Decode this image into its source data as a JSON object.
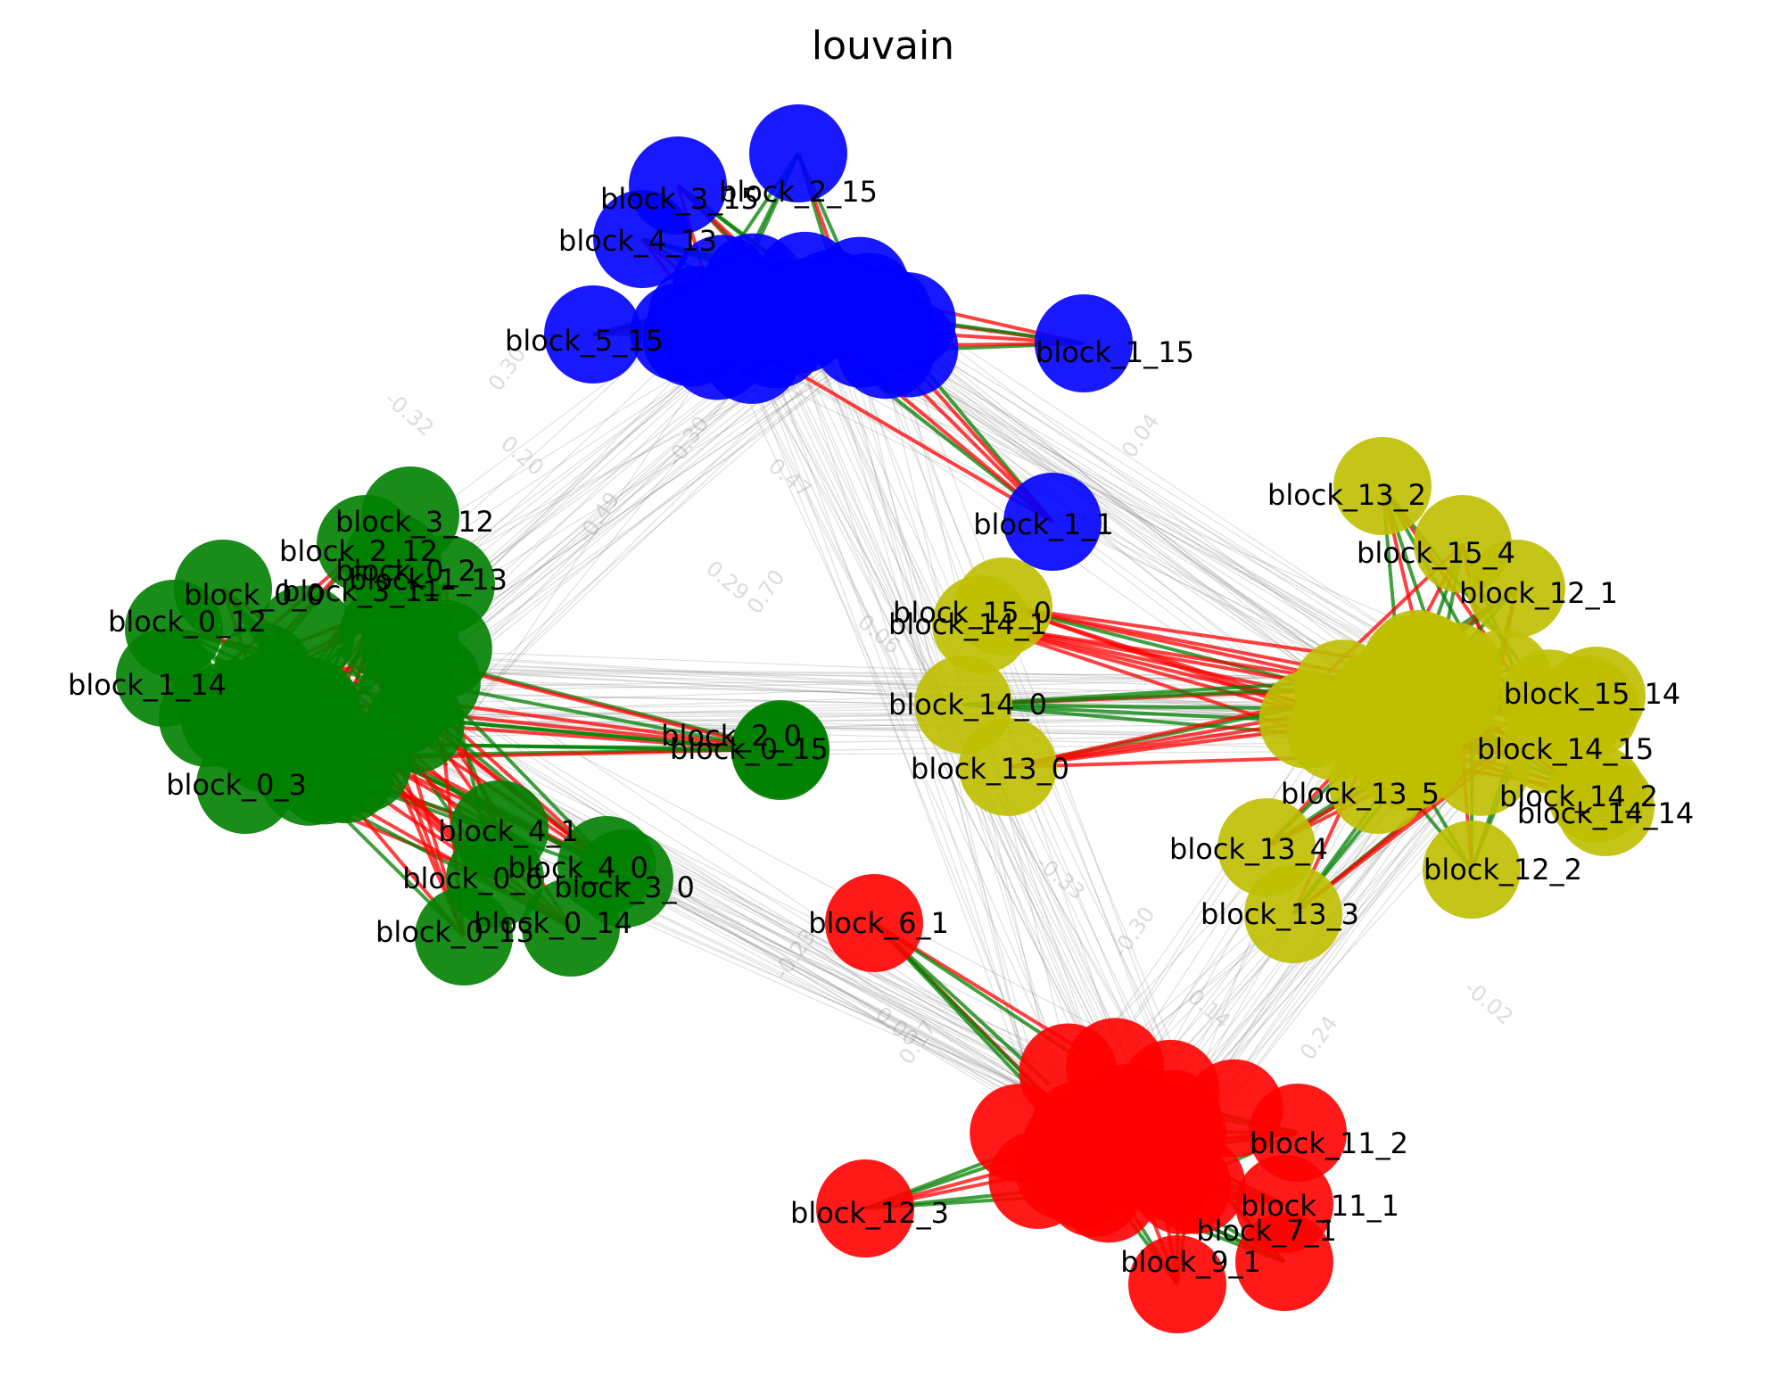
{
  "title": "louvain",
  "communities": [
    {
      "id": "blue",
      "color": "#0000ff"
    },
    {
      "id": "green",
      "color": "#008000"
    },
    {
      "id": "yellow",
      "color": "#bfbf00"
    },
    {
      "id": "red",
      "color": "#ff0000"
    }
  ],
  "edge_colors": {
    "positive": "#008000",
    "negative": "#ff0000",
    "inter": "#808080"
  },
  "nodes": [
    {
      "label": "block_2_15",
      "community": "blue"
    },
    {
      "label": "block_3_15",
      "community": "blue"
    },
    {
      "label": "block_4_13",
      "community": "blue"
    },
    {
      "label": "block_5_15",
      "community": "blue"
    },
    {
      "label": "block_1_15",
      "community": "blue"
    },
    {
      "label": "block_1_1",
      "community": "blue"
    },
    {
      "label": "block_3_12",
      "community": "green"
    },
    {
      "label": "block_2_12",
      "community": "green"
    },
    {
      "label": "block_0_2",
      "community": "green"
    },
    {
      "label": "block_0_0",
      "community": "green"
    },
    {
      "label": "block_3_11",
      "community": "green"
    },
    {
      "label": "block_1_13",
      "community": "green"
    },
    {
      "label": "block_0_12",
      "community": "green"
    },
    {
      "label": "block_1_14",
      "community": "green"
    },
    {
      "label": "block_0_3",
      "community": "green"
    },
    {
      "label": "block_2_0",
      "community": "green"
    },
    {
      "label": "block_0_15",
      "community": "green"
    },
    {
      "label": "block_4_1",
      "community": "green"
    },
    {
      "label": "block_0_6",
      "community": "green"
    },
    {
      "label": "block_4_0",
      "community": "green"
    },
    {
      "label": "block_3_0",
      "community": "green"
    },
    {
      "label": "block_0_14",
      "community": "green"
    },
    {
      "label": "block_0_13",
      "community": "green"
    },
    {
      "label": "block_13_2",
      "community": "yellow"
    },
    {
      "label": "block_15_4",
      "community": "yellow"
    },
    {
      "label": "block_12_1",
      "community": "yellow"
    },
    {
      "label": "block_15_0",
      "community": "yellow"
    },
    {
      "label": "block_14_1",
      "community": "yellow"
    },
    {
      "label": "block_14_0",
      "community": "yellow"
    },
    {
      "label": "block_13_0",
      "community": "yellow"
    },
    {
      "label": "block_15_14",
      "community": "yellow"
    },
    {
      "label": "block_14_15",
      "community": "yellow"
    },
    {
      "label": "block_14_2",
      "community": "yellow"
    },
    {
      "label": "block_14_14",
      "community": "yellow"
    },
    {
      "label": "block_13_5",
      "community": "yellow"
    },
    {
      "label": "block_13_4",
      "community": "yellow"
    },
    {
      "label": "block_12_2",
      "community": "yellow"
    },
    {
      "label": "block_13_3",
      "community": "yellow"
    },
    {
      "label": "block_6_1",
      "community": "red"
    },
    {
      "label": "block_11_2",
      "community": "red"
    },
    {
      "label": "block_11_1",
      "community": "red"
    },
    {
      "label": "block_12_3",
      "community": "red"
    },
    {
      "label": "block_7_1",
      "community": "red"
    },
    {
      "label": "block_9_1",
      "community": "red"
    }
  ],
  "edge_weight_labels": [
    "-0.32",
    "0.30",
    "0.20",
    "-0.30",
    "0.47",
    "-0.49",
    "0.29",
    "0.70",
    "0.06",
    "0.04",
    "-0.33",
    "-0.30",
    "0.14",
    "-0.23",
    "0.00",
    "0.24",
    "-0.02",
    "0.17"
  ]
}
